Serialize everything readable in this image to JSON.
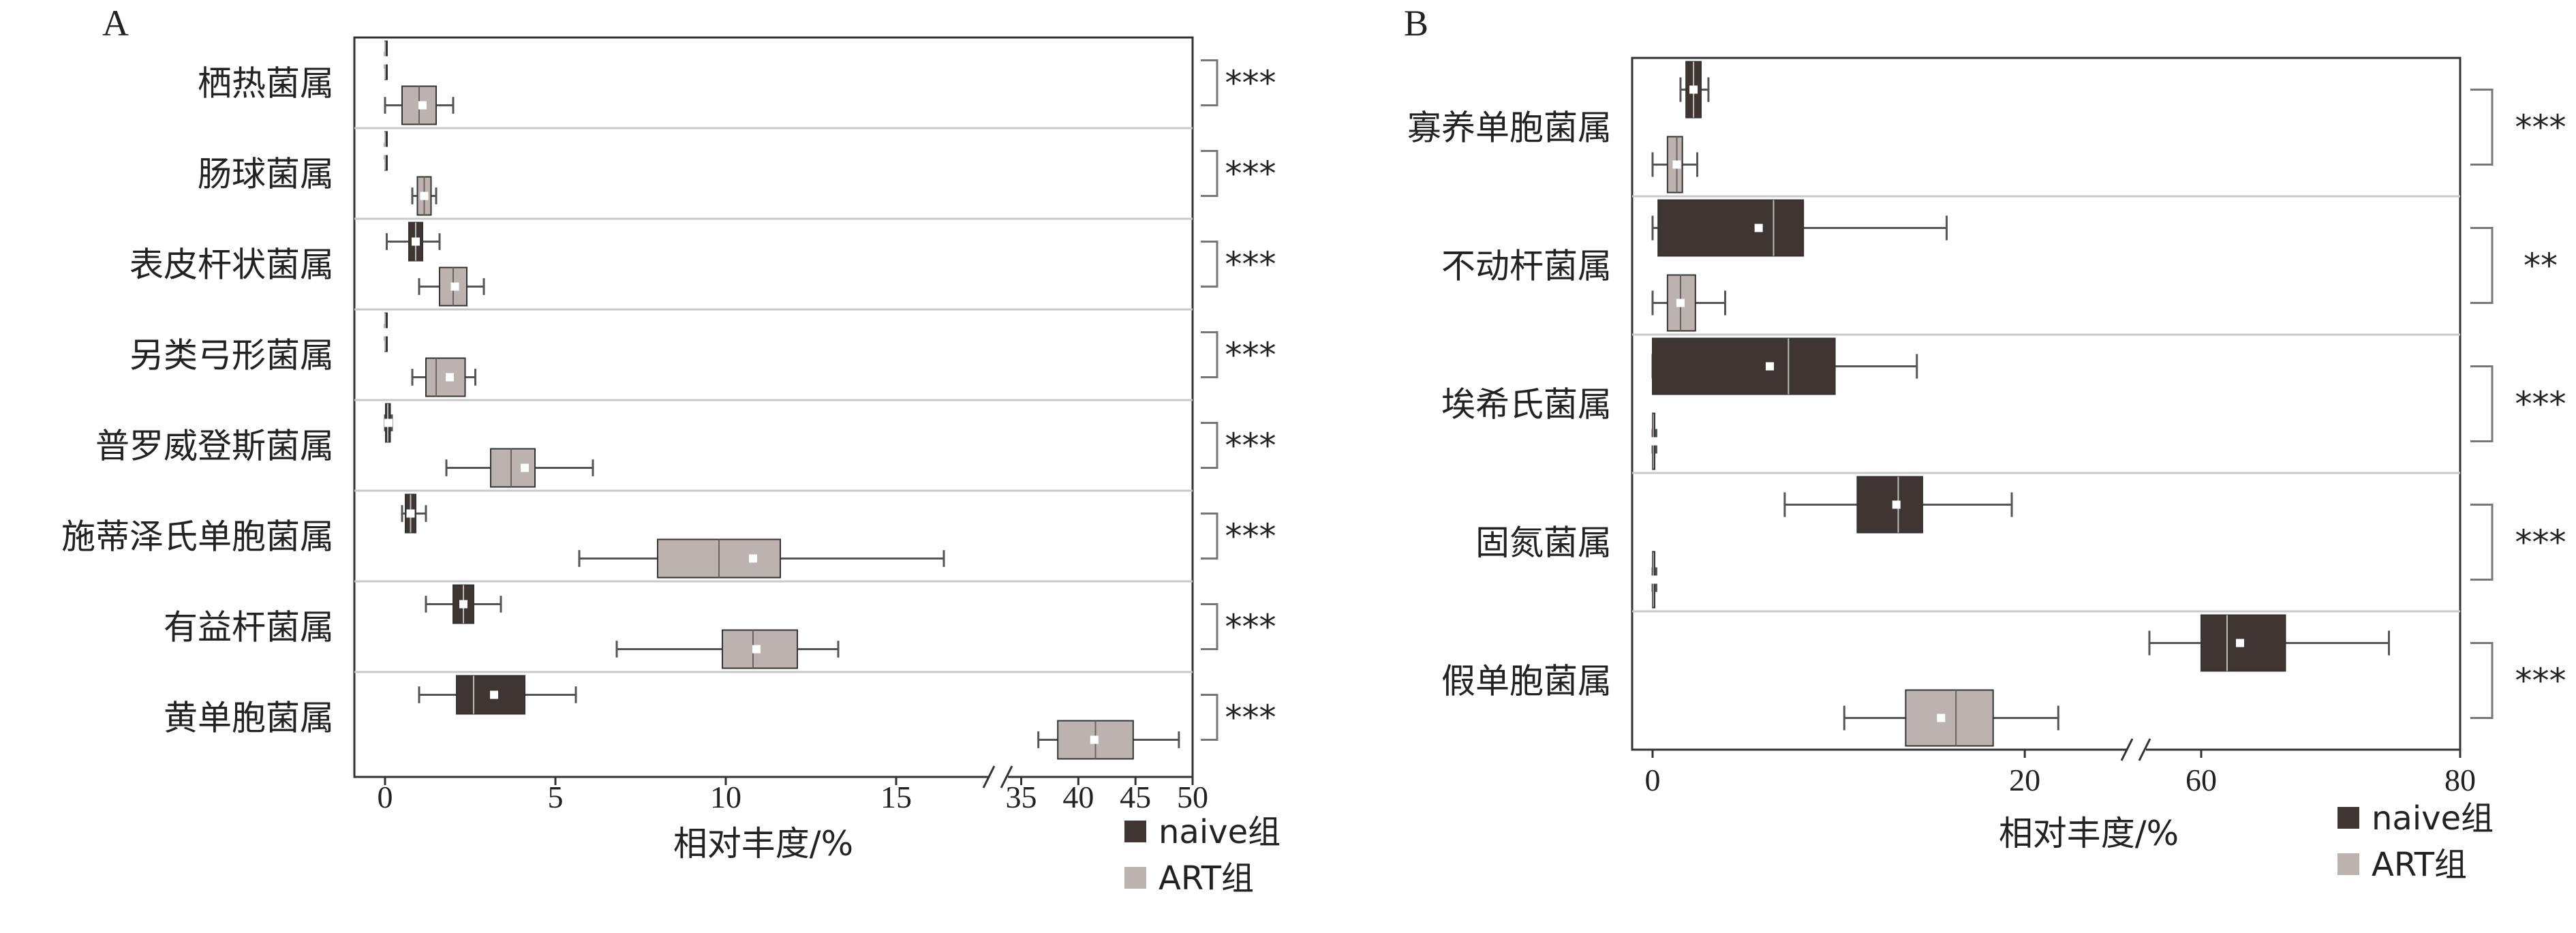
{
  "figure": {
    "colors": {
      "naive": "#3f3634",
      "art": "#bcb3b1",
      "line": "#555555",
      "grid": "#c8c8c8"
    }
  },
  "chart_data": [
    {
      "panel": "A",
      "type": "box",
      "orientation": "horizontal",
      "xlabel": "相对丰度/%",
      "axis_break": [
        18,
        33
      ],
      "xticks": [
        0,
        5,
        10,
        15,
        35,
        40,
        45,
        50
      ],
      "legend": [
        "naive组",
        "ART组"
      ],
      "legend_position": "bottom-right",
      "categories": [
        "栖热菌属",
        "肠球菌属",
        "表皮杆状菌属",
        "另类弓形菌属",
        "普罗威登斯菌属",
        "施蒂泽氏单胞菌属",
        "有益杆菌属",
        "黄单胞菌属"
      ],
      "significance": [
        "***",
        "***",
        "***",
        "***",
        "***",
        "***",
        "***",
        "***"
      ],
      "series": [
        {
          "name": "naive组",
          "boxes": [
            {
              "min": 0.0,
              "q1": 0.0,
              "median": 0.0,
              "q3": 0.02,
              "max": 0.05,
              "mean": 0.01
            },
            {
              "min": 0.0,
              "q1": 0.0,
              "median": 0.0,
              "q3": 0.02,
              "max": 0.05,
              "mean": 0.01
            },
            {
              "min": 0.05,
              "q1": 0.7,
              "median": 0.9,
              "q3": 1.1,
              "max": 1.6,
              "mean": 0.9
            },
            {
              "min": 0.0,
              "q1": 0.0,
              "median": 0.0,
              "q3": 0.02,
              "max": 0.05,
              "mean": 0.01
            },
            {
              "min": 0.0,
              "q1": 0.02,
              "median": 0.08,
              "q3": 0.15,
              "max": 0.2,
              "mean": 0.1
            },
            {
              "min": 0.5,
              "q1": 0.6,
              "median": 0.75,
              "q3": 0.9,
              "max": 1.2,
              "mean": 0.75
            },
            {
              "min": 1.2,
              "q1": 2.0,
              "median": 2.3,
              "q3": 2.6,
              "max": 3.4,
              "mean": 2.3
            },
            {
              "min": 1.0,
              "q1": 2.1,
              "median": 2.6,
              "q3": 4.1,
              "max": 5.6,
              "mean": 3.2
            }
          ]
        },
        {
          "name": "ART组",
          "boxes": [
            {
              "min": 0.0,
              "q1": 0.5,
              "median": 1.0,
              "q3": 1.5,
              "max": 2.0,
              "mean": 1.1
            },
            {
              "min": 0.8,
              "q1": 0.95,
              "median": 1.15,
              "q3": 1.35,
              "max": 1.5,
              "mean": 1.15
            },
            {
              "min": 1.0,
              "q1": 1.6,
              "median": 2.0,
              "q3": 2.4,
              "max": 2.9,
              "mean": 2.05
            },
            {
              "min": 0.8,
              "q1": 1.2,
              "median": 1.5,
              "q3": 2.35,
              "max": 2.65,
              "mean": 1.9
            },
            {
              "min": 1.8,
              "q1": 3.1,
              "median": 3.7,
              "q3": 4.4,
              "max": 6.1,
              "mean": 4.1
            },
            {
              "min": 5.7,
              "q1": 8.0,
              "median": 9.8,
              "q3": 11.6,
              "max": 16.4,
              "mean": 10.8
            },
            {
              "min": 6.8,
              "q1": 9.9,
              "median": 10.8,
              "q3": 12.1,
              "max": 13.3,
              "mean": 10.9
            },
            {
              "min": 36.5,
              "q1": 38.2,
              "median": 41.5,
              "q3": 44.8,
              "max": 48.8,
              "mean": 41.4
            }
          ]
        }
      ]
    },
    {
      "panel": "B",
      "type": "box",
      "orientation": "horizontal",
      "xlabel": "相对丰度/%",
      "axis_break": [
        26,
        55
      ],
      "xticks": [
        0,
        20,
        60,
        80
      ],
      "legend": [
        "naive组",
        "ART组"
      ],
      "legend_position": "bottom-right",
      "categories": [
        "寡养单胞菌属",
        "不动杆菌属",
        "埃希氏菌属",
        "固氮菌属",
        "假单胞菌属"
      ],
      "significance": [
        "***",
        "**",
        "***",
        "***",
        "***"
      ],
      "series": [
        {
          "name": "naive组",
          "boxes": [
            {
              "min": 1.5,
              "q1": 1.8,
              "median": 2.2,
              "q3": 2.6,
              "max": 3.0,
              "mean": 2.2
            },
            {
              "min": 0.0,
              "q1": 0.3,
              "median": 6.5,
              "q3": 8.1,
              "max": 15.8,
              "mean": 5.7
            },
            {
              "min": 0.0,
              "q1": 0.0,
              "median": 7.3,
              "q3": 9.8,
              "max": 14.2,
              "mean": 6.3
            },
            {
              "min": 7.1,
              "q1": 11.0,
              "median": 13.2,
              "q3": 14.5,
              "max": 19.3,
              "mean": 13.1
            },
            {
              "min": 56.0,
              "q1": 60.0,
              "median": 62.0,
              "q3": 66.5,
              "max": 74.5,
              "mean": 63.0
            }
          ]
        },
        {
          "name": "ART组",
          "boxes": [
            {
              "min": 0.0,
              "q1": 0.8,
              "median": 1.3,
              "q3": 1.6,
              "max": 2.4,
              "mean": 1.3
            },
            {
              "min": 0.0,
              "q1": 0.8,
              "median": 1.5,
              "q3": 2.3,
              "max": 3.9,
              "mean": 1.5
            },
            {
              "min": 0.0,
              "q1": 0.0,
              "median": 0.0,
              "q3": 0.1,
              "max": 0.2,
              "mean": 0.05
            },
            {
              "min": 0.0,
              "q1": 0.0,
              "median": 0.0,
              "q3": 0.1,
              "max": 0.2,
              "mean": 0.05
            },
            {
              "min": 10.3,
              "q1": 13.6,
              "median": 16.3,
              "q3": 18.3,
              "max": 21.8,
              "mean": 15.5
            }
          ]
        }
      ]
    }
  ]
}
